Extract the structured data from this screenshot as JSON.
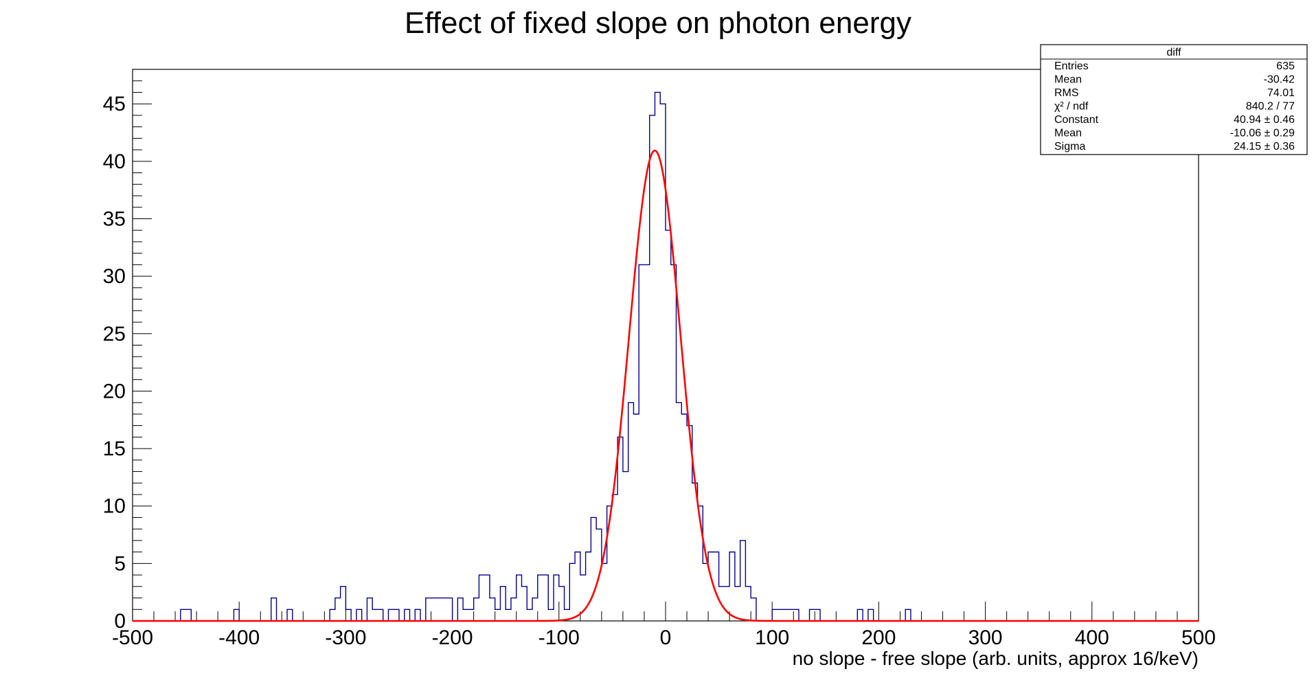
{
  "chart_data": {
    "type": "histogram",
    "title": "Effect of fixed slope on photon energy",
    "xlabel": "no slope - free slope (arb. units, approx 16/keV)",
    "ylabel": "",
    "xlim": [
      -500,
      500
    ],
    "ylim": [
      0,
      48
    ],
    "grid": false,
    "x_ticks": [
      "-500",
      "-400",
      "-300",
      "-200",
      "-100",
      "0",
      "100",
      "200",
      "300",
      "400",
      "500"
    ],
    "y_ticks": [
      "0",
      "5",
      "10",
      "15",
      "20",
      "25",
      "30",
      "35",
      "40",
      "45"
    ],
    "bin_width": 5,
    "series": [
      {
        "name": "diff",
        "kind": "histogram",
        "color": "#00008b",
        "bins": [
          {
            "x": -455,
            "y": 1
          },
          {
            "x": -450,
            "y": 1
          },
          {
            "x": -405,
            "y": 1
          },
          {
            "x": -370,
            "y": 2
          },
          {
            "x": -355,
            "y": 1
          },
          {
            "x": -315,
            "y": 1
          },
          {
            "x": -310,
            "y": 2
          },
          {
            "x": -305,
            "y": 3
          },
          {
            "x": -300,
            "y": 1
          },
          {
            "x": -290,
            "y": 1
          },
          {
            "x": -280,
            "y": 2
          },
          {
            "x": -275,
            "y": 1
          },
          {
            "x": -270,
            "y": 1
          },
          {
            "x": -260,
            "y": 1
          },
          {
            "x": -255,
            "y": 1
          },
          {
            "x": -245,
            "y": 1
          },
          {
            "x": -235,
            "y": 1
          },
          {
            "x": -225,
            "y": 2
          },
          {
            "x": -220,
            "y": 2
          },
          {
            "x": -215,
            "y": 2
          },
          {
            "x": -210,
            "y": 2
          },
          {
            "x": -205,
            "y": 2
          },
          {
            "x": -195,
            "y": 2
          },
          {
            "x": -190,
            "y": 1
          },
          {
            "x": -185,
            "y": 1
          },
          {
            "x": -180,
            "y": 2
          },
          {
            "x": -175,
            "y": 4
          },
          {
            "x": -170,
            "y": 4
          },
          {
            "x": -165,
            "y": 2
          },
          {
            "x": -160,
            "y": 1
          },
          {
            "x": -155,
            "y": 3
          },
          {
            "x": -150,
            "y": 1
          },
          {
            "x": -145,
            "y": 2
          },
          {
            "x": -140,
            "y": 4
          },
          {
            "x": -135,
            "y": 3
          },
          {
            "x": -130,
            "y": 1
          },
          {
            "x": -125,
            "y": 2
          },
          {
            "x": -120,
            "y": 4
          },
          {
            "x": -115,
            "y": 4
          },
          {
            "x": -110,
            "y": 1
          },
          {
            "x": -105,
            "y": 4
          },
          {
            "x": -100,
            "y": 3
          },
          {
            "x": -95,
            "y": 1
          },
          {
            "x": -90,
            "y": 5
          },
          {
            "x": -85,
            "y": 6
          },
          {
            "x": -80,
            "y": 4
          },
          {
            "x": -75,
            "y": 6
          },
          {
            "x": -70,
            "y": 9
          },
          {
            "x": -65,
            "y": 8
          },
          {
            "x": -60,
            "y": 5
          },
          {
            "x": -55,
            "y": 10
          },
          {
            "x": -50,
            "y": 11
          },
          {
            "x": -45,
            "y": 16
          },
          {
            "x": -40,
            "y": 13
          },
          {
            "x": -35,
            "y": 19
          },
          {
            "x": -30,
            "y": 18
          },
          {
            "x": -25,
            "y": 31
          },
          {
            "x": -20,
            "y": 31
          },
          {
            "x": -15,
            "y": 44
          },
          {
            "x": -10,
            "y": 46
          },
          {
            "x": -5,
            "y": 45
          },
          {
            "x": 0,
            "y": 34
          },
          {
            "x": 5,
            "y": 31
          },
          {
            "x": 10,
            "y": 19
          },
          {
            "x": 15,
            "y": 18
          },
          {
            "x": 20,
            "y": 17
          },
          {
            "x": 25,
            "y": 12
          },
          {
            "x": 30,
            "y": 10
          },
          {
            "x": 35,
            "y": 5
          },
          {
            "x": 40,
            "y": 6
          },
          {
            "x": 45,
            "y": 6
          },
          {
            "x": 50,
            "y": 3
          },
          {
            "x": 55,
            "y": 3
          },
          {
            "x": 60,
            "y": 6
          },
          {
            "x": 65,
            "y": 3
          },
          {
            "x": 70,
            "y": 7
          },
          {
            "x": 75,
            "y": 3
          },
          {
            "x": 80,
            "y": 2
          },
          {
            "x": 100,
            "y": 1
          },
          {
            "x": 105,
            "y": 1
          },
          {
            "x": 110,
            "y": 1
          },
          {
            "x": 115,
            "y": 1
          },
          {
            "x": 120,
            "y": 1
          },
          {
            "x": 135,
            "y": 1
          },
          {
            "x": 140,
            "y": 1
          },
          {
            "x": 180,
            "y": 1
          },
          {
            "x": 190,
            "y": 1
          },
          {
            "x": 225,
            "y": 1
          }
        ]
      },
      {
        "name": "gaus fit",
        "kind": "line",
        "color": "#ff0000",
        "function": "gaussian",
        "constant": 40.94,
        "mean": -10.06,
        "sigma": 24.15,
        "x_range": [
          -500,
          500
        ]
      }
    ],
    "stats_box": {
      "title": "diff",
      "rows": [
        {
          "label": "Entries",
          "value": "635"
        },
        {
          "label": "Mean",
          "value": "-30.42"
        },
        {
          "label": "RMS",
          "value": "74.01"
        },
        {
          "label": "χ² / ndf",
          "value": "840.2 / 77"
        },
        {
          "label": "Constant",
          "value": "40.94 ± 0.46"
        },
        {
          "label": "Mean",
          "value": "-10.06 ± 0.29"
        },
        {
          "label": "Sigma",
          "value": "24.15 ± 0.36"
        }
      ]
    }
  }
}
